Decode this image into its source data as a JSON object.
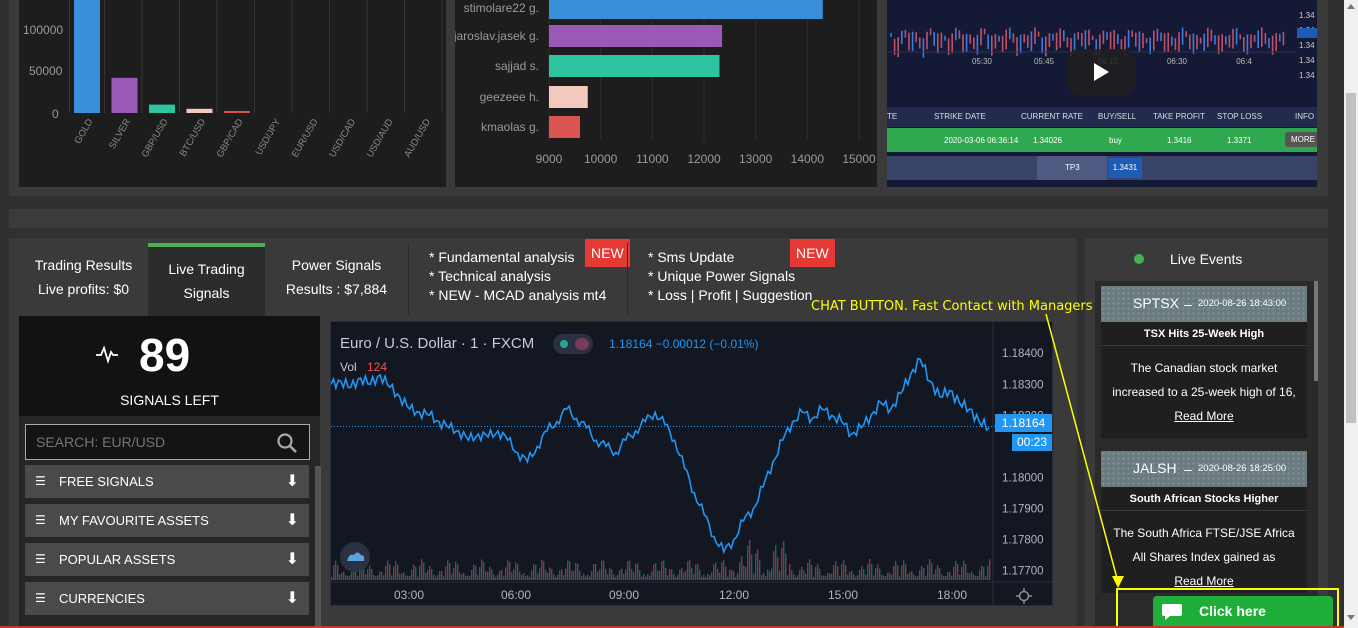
{
  "asset_volume_chart": {
    "y_ticks": [
      "100000",
      "50000",
      "0"
    ],
    "categories": [
      "GOLD",
      "SILVER",
      "GBP/USD",
      "BTC/USD",
      "GBP/CAD",
      "USD/JPY",
      "EUR/USD",
      "USD/CAD",
      "USD/AUD",
      "AUD/USD"
    ]
  },
  "traders_chart": {
    "traders": [
      "stimolare22 g.",
      "jaroslav.jasek g.",
      "sajjad s.",
      "geezeee h.",
      "kmaolas g."
    ],
    "x_ticks": [
      "9000",
      "10000",
      "11000",
      "12000",
      "13000",
      "14000",
      "15000"
    ]
  },
  "chart_data": [
    {
      "type": "bar",
      "categories": [
        "GOLD",
        "SILVER",
        "GBP/USD",
        "BTC/USD",
        "GBP/CAD",
        "USD/JPY",
        "EUR/USD",
        "USD/CAD",
        "USD/AUD",
        "AUD/USD"
      ],
      "values": [
        135000,
        42000,
        10000,
        5000,
        2000,
        0,
        0,
        0,
        0,
        0
      ],
      "ylim": [
        0,
        135000
      ],
      "colors": [
        "#3a8fd9",
        "#9b59b6",
        "#2ec4a0",
        "#f3c9bd",
        "#d9534f",
        "#888888",
        "#888888",
        "#888888",
        "#888888",
        "#888888"
      ]
    },
    {
      "type": "bar",
      "orientation": "horizontal",
      "categories": [
        "stimolare22 g.",
        "jaroslav.jasek g.",
        "sajjad s.",
        "geezeee h.",
        "kmaolas g."
      ],
      "values": [
        14300,
        12350,
        12300,
        9750,
        9600
      ],
      "xlim": [
        9000,
        15000
      ],
      "colors": [
        "#3a8fd9",
        "#9b59b6",
        "#2ec4a0",
        "#f3c9bd",
        "#d9534f"
      ]
    },
    {
      "type": "line",
      "title": "Euro / U.S. Dollar · 1 · FXCM",
      "x_ticks": [
        "03:00",
        "06:00",
        "09:00",
        "12:00",
        "15:00",
        "18:00"
      ],
      "y_ticks": [
        "1.18400",
        "1.18300",
        "1.18200",
        "1.18000",
        "1.17900",
        "1.17800",
        "1.17700"
      ],
      "ylim": [
        1.1767,
        1.1842
      ],
      "series": [
        {
          "values": [
            1.183,
            1.1831,
            1.1829,
            1.1832,
            1.183,
            1.1833,
            1.1829,
            1.1826,
            1.1822,
            1.1821,
            1.182,
            1.1818,
            1.1816,
            1.1815,
            1.1812,
            1.1814,
            1.1813,
            1.1815,
            1.1812,
            1.1808,
            1.1805,
            1.181,
            1.1815,
            1.1818,
            1.1822,
            1.1819,
            1.1816,
            1.1812,
            1.181,
            1.1808,
            1.1812,
            1.1815,
            1.1818,
            1.1821,
            1.1817,
            1.1812,
            1.1803,
            1.1795,
            1.1788,
            1.1781,
            1.1776,
            1.178,
            1.1786,
            1.179,
            1.1797,
            1.1805,
            1.1812,
            1.1818,
            1.1821,
            1.1819,
            1.1822,
            1.182,
            1.1818,
            1.1814,
            1.1816,
            1.182,
            1.1824,
            1.1822,
            1.1827,
            1.1833,
            1.1838,
            1.1831,
            1.1826,
            1.1828,
            1.1824,
            1.1822,
            1.1818,
            1.1816
          ]
        }
      ]
    }
  ],
  "video_panel": {
    "time_ticks": [
      "05:30",
      "05:45",
      "06:15",
      "06:30",
      "06:4"
    ],
    "right_ticks": [
      "1.34",
      "1.34",
      "1.34",
      "1.34",
      "1.34"
    ],
    "columns": [
      "TE",
      "STRIKE DATE",
      "CURRENT RATE",
      "BUY/SELL",
      "TAKE PROFIT",
      "STOP LOSS",
      "INFO"
    ],
    "row": [
      "",
      "2020-03-06 06:36:14",
      "1.34026",
      "buy",
      "1.3416",
      "1.3371",
      "MORE"
    ],
    "tp_label": "TP3",
    "tp_value": "1.3431"
  },
  "tabs": {
    "trading_results": "Trading Results",
    "live_profits": "Live profits: $0",
    "live_trading_1": "Live Trading",
    "live_trading_2": "Signals",
    "power_signals": "Power Signals",
    "power_results": "Results : $7,884",
    "features_a": [
      "* Fundamental analysis",
      "* Technical analysis",
      "* NEW - MCAD analysis mt4"
    ],
    "features_b": [
      "* Sms Update",
      "* Unique Power Signals",
      "* Loss | Profit | Suggestion"
    ],
    "new_badge": "NEW"
  },
  "signals": {
    "count": "89",
    "label": "SIGNALS LEFT"
  },
  "search": {
    "placeholder": "SEARCH: EUR/USD"
  },
  "menu": [
    "FREE SIGNALS",
    "MY FAVOURITE ASSETS",
    "POPULAR ASSETS",
    "CURRENCIES"
  ],
  "tv": {
    "title": "Euro / U.S. Dollar · 1 · FXCM",
    "quote": "1.18164  −0.00012  (−0.01%)",
    "vol_label": "Vol",
    "vol_value": "124",
    "price_tag": "1.18164",
    "timer_tag": "00:23",
    "price_ticks": [
      "1.18400",
      "1.18300",
      "1.18200",
      "1.18000",
      "1.17900",
      "1.17800",
      "1.17700"
    ],
    "time_ticks": [
      "03:00",
      "06:00",
      "09:00",
      "12:00",
      "15:00",
      "18:00"
    ]
  },
  "events": {
    "header": "Live Events",
    "items": [
      {
        "ticker": "SPTSX",
        "date": "2020-08-26 18:43:00",
        "title": "TSX Hits 25-Week High",
        "body_1": "The Canadian stock market",
        "body_2": "increased to a 25-week high of 16,",
        "more": "Read More"
      },
      {
        "ticker": "JALSH",
        "date": "2020-08-26 18:25:00",
        "title": "South African Stocks Higher",
        "body_1": "The South Africa FTSE/JSE Africa",
        "body_2": "All Shares Index gained as",
        "more": "Read More"
      }
    ]
  },
  "chat": {
    "annotation": "CHAT BUTTON. Fast Contact with Managers",
    "button": "Click here"
  },
  "colors": {
    "accent_green": "#4caf50",
    "new_red": "#e53935",
    "chat_green": "#1fae3a",
    "tv_line": "#2196f3",
    "annotation_yellow": "#ffff00"
  }
}
